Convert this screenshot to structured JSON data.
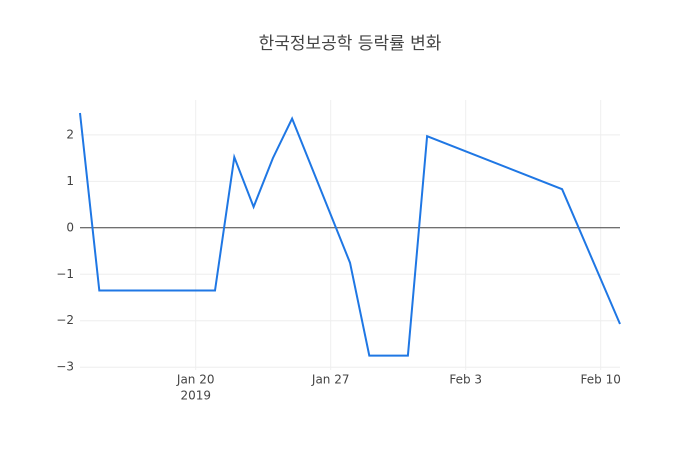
{
  "chart_data": {
    "type": "line",
    "title": "한국정보공학 등락률 변화",
    "x": [
      "2019-01-14",
      "2019-01-15",
      "2019-01-21",
      "2019-01-22",
      "2019-01-23",
      "2019-01-24",
      "2019-01-25",
      "2019-01-28",
      "2019-01-29",
      "2019-01-31",
      "2019-02-01",
      "2019-02-08",
      "2019-02-11"
    ],
    "series": [
      {
        "color": "#1f77e4",
        "values": [
          2.47,
          -1.35,
          -1.35,
          1.52,
          0.45,
          1.5,
          2.35,
          -0.75,
          -2.75,
          -2.75,
          1.97,
          0.83,
          -2.07
        ]
      }
    ],
    "xlim": [
      "2019-01-14",
      "2019-02-11"
    ],
    "xticks": [
      {
        "value": "2019-01-20",
        "label": "Jan 20"
      },
      {
        "value": "2019-01-27",
        "label": "Jan 27"
      },
      {
        "value": "2019-02-03",
        "label": "Feb 3"
      },
      {
        "value": "2019-02-10",
        "label": "Feb 10"
      }
    ],
    "x_year_label": "2019",
    "ylim": [
      -3.06,
      2.75
    ],
    "yticks": [
      {
        "value": -3,
        "label": "−3"
      },
      {
        "value": -2,
        "label": "−2"
      },
      {
        "value": -1,
        "label": "−1"
      },
      0,
      1,
      2
    ],
    "grid": true,
    "zeroline": true
  }
}
